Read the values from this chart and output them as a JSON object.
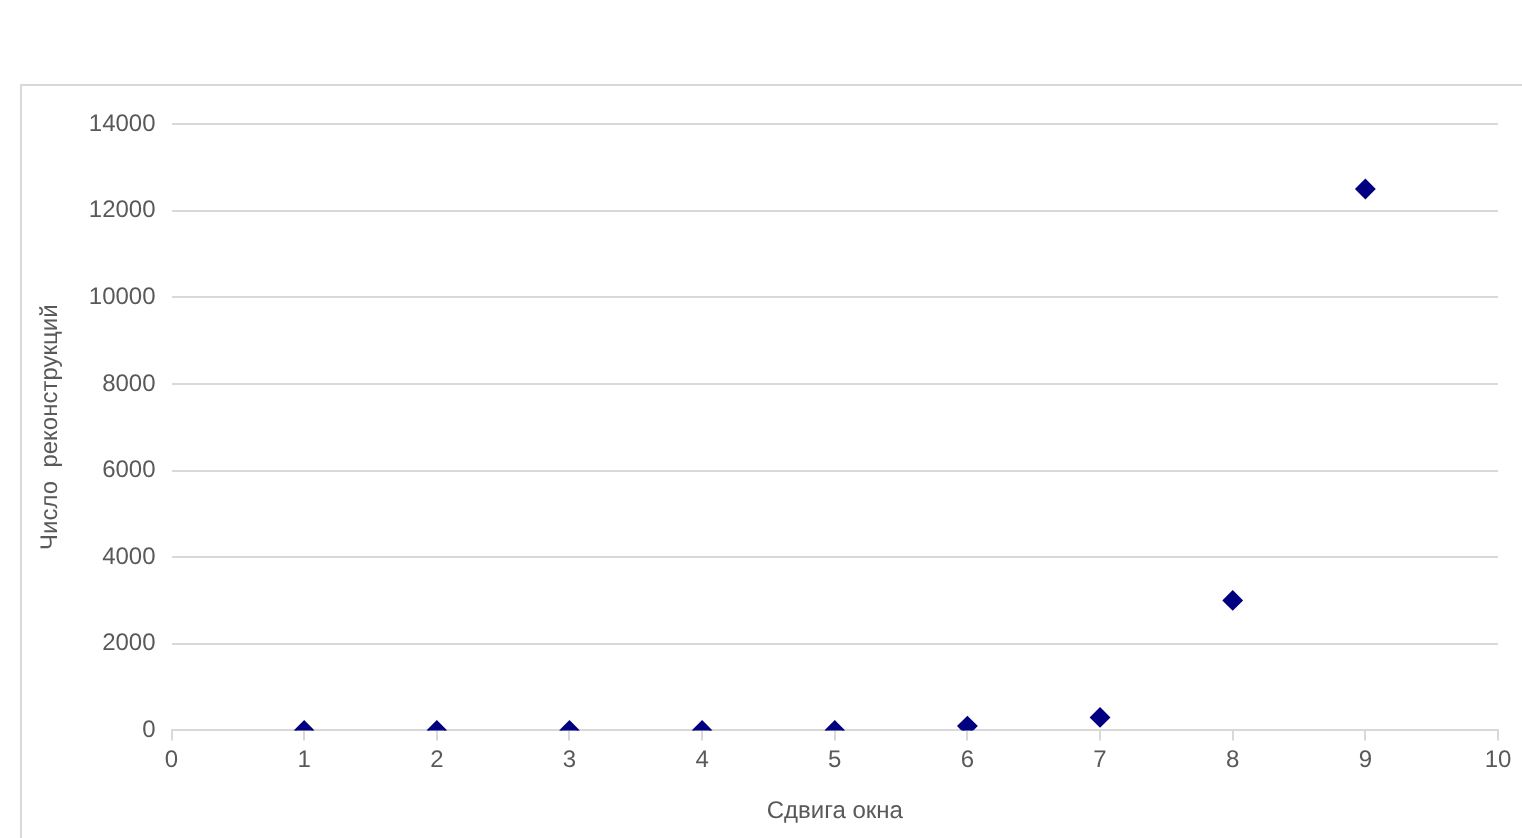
{
  "chart_data": {
    "type": "scatter",
    "xlabel": "Сдвига окна",
    "ylabel": "Число  реконструкций",
    "x": [
      1,
      2,
      3,
      4,
      5,
      6,
      7,
      8,
      9
    ],
    "series": [
      {
        "color": "#000080",
        "values": [
          0,
          0,
          0,
          0,
          0,
          100,
          300,
          3000,
          12500
        ]
      }
    ],
    "xlim": [
      0,
      10
    ],
    "xticks": [
      0,
      1,
      2,
      3,
      4,
      5,
      6,
      7,
      8,
      9,
      10
    ],
    "ylim": [
      0,
      14000
    ],
    "yticks": [
      0,
      2000,
      4000,
      6000,
      8000,
      10000,
      12000,
      14000
    ],
    "grid": "y",
    "legend": false,
    "marker": "diamond"
  }
}
